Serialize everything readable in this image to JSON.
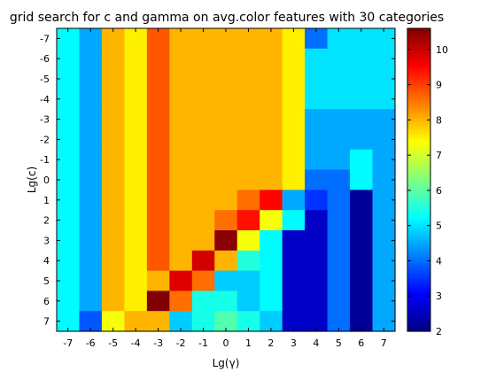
{
  "chart_data": {
    "type": "heatmap",
    "title": "grid search for c and gamma on avg.color features with 30 categories",
    "xlabel": "Lg(γ)",
    "ylabel": "Lg(c)",
    "x": [
      -7,
      -6,
      -5,
      -4,
      -3,
      -2,
      -1,
      0,
      1,
      2,
      3,
      4,
      5,
      6,
      7
    ],
    "y": [
      -7,
      -6,
      -5,
      -4,
      -3,
      -2,
      -1,
      0,
      1,
      2,
      3,
      4,
      5,
      6,
      7
    ],
    "x_tick_labels": [
      "-7",
      "-6",
      "-5",
      "-4",
      "-3",
      "-2",
      "-1",
      "0",
      "1",
      "2",
      "3",
      "4",
      "5",
      "6",
      "7"
    ],
    "y_tick_labels": [
      "-7",
      "-6",
      "-5",
      "-4",
      "-3",
      "-2",
      "-1",
      "0",
      "1",
      "2",
      "3",
      "4",
      "5",
      "6",
      "7"
    ],
    "values": [
      [
        5.2,
        4.5,
        8.0,
        7.5,
        8.8,
        8.0,
        8.0,
        8.0,
        8.0,
        8.0,
        7.5,
        4.0,
        5.0,
        5.0,
        5.0
      ],
      [
        5.2,
        4.5,
        8.0,
        7.5,
        8.8,
        8.0,
        8.0,
        8.0,
        8.0,
        8.0,
        7.5,
        5.0,
        5.0,
        5.0,
        5.0
      ],
      [
        5.2,
        4.5,
        8.0,
        7.5,
        8.8,
        8.0,
        8.0,
        8.0,
        8.0,
        8.0,
        7.5,
        5.0,
        5.0,
        5.0,
        5.0
      ],
      [
        5.2,
        4.5,
        8.0,
        7.5,
        8.8,
        8.0,
        8.0,
        8.0,
        8.0,
        8.0,
        7.5,
        5.0,
        5.0,
        5.0,
        5.0
      ],
      [
        5.2,
        4.5,
        8.0,
        7.5,
        8.8,
        8.0,
        8.0,
        8.0,
        8.0,
        8.0,
        7.5,
        4.5,
        4.5,
        4.5,
        4.5
      ],
      [
        5.2,
        4.5,
        8.0,
        7.5,
        8.8,
        8.0,
        8.0,
        8.0,
        8.0,
        8.0,
        7.5,
        4.5,
        4.5,
        4.5,
        4.5
      ],
      [
        5.2,
        4.5,
        8.0,
        7.5,
        8.8,
        8.0,
        8.0,
        8.0,
        8.0,
        8.0,
        7.5,
        4.5,
        4.5,
        5.2,
        4.5
      ],
      [
        5.2,
        4.5,
        8.0,
        7.5,
        8.8,
        8.0,
        8.0,
        8.0,
        8.0,
        8.0,
        7.5,
        4.0,
        4.0,
        5.2,
        4.5
      ],
      [
        5.2,
        4.5,
        8.0,
        7.5,
        8.8,
        8.0,
        8.0,
        8.0,
        8.6,
        9.5,
        4.5,
        3.5,
        4.0,
        2.2,
        4.5
      ],
      [
        5.2,
        4.5,
        8.0,
        7.5,
        8.8,
        8.0,
        8.0,
        8.6,
        9.4,
        7.3,
        5.2,
        2.6,
        4.0,
        2.2,
        4.5
      ],
      [
        5.2,
        4.5,
        8.0,
        7.5,
        8.8,
        8.0,
        8.0,
        10.5,
        7.3,
        5.2,
        2.6,
        2.6,
        4.0,
        2.2,
        4.5
      ],
      [
        5.2,
        4.5,
        8.0,
        7.5,
        8.8,
        8.0,
        9.9,
        8.0,
        5.5,
        5.2,
        2.6,
        2.6,
        4.0,
        2.2,
        4.5
      ],
      [
        5.2,
        4.5,
        8.0,
        7.5,
        8.0,
        9.8,
        8.6,
        4.8,
        4.8,
        5.2,
        2.6,
        2.6,
        4.0,
        2.2,
        4.5
      ],
      [
        5.2,
        4.5,
        8.0,
        7.5,
        10.6,
        8.6,
        5.4,
        5.4,
        4.8,
        5.2,
        2.6,
        2.6,
        4.0,
        2.2,
        4.5
      ],
      [
        5.2,
        3.8,
        7.3,
        8.0,
        8.0,
        4.8,
        5.4,
        5.9,
        5.4,
        4.8,
        2.6,
        2.6,
        4.0,
        2.2,
        4.5
      ]
    ],
    "colorbar": {
      "min": 2,
      "max": 10.6,
      "ticks": [
        2,
        3,
        4,
        5,
        6,
        7,
        8,
        9,
        10
      ],
      "tick_labels": [
        "2",
        "3",
        "4",
        "5",
        "6",
        "7",
        "8",
        "9",
        "10"
      ],
      "colormap": "jet"
    }
  }
}
